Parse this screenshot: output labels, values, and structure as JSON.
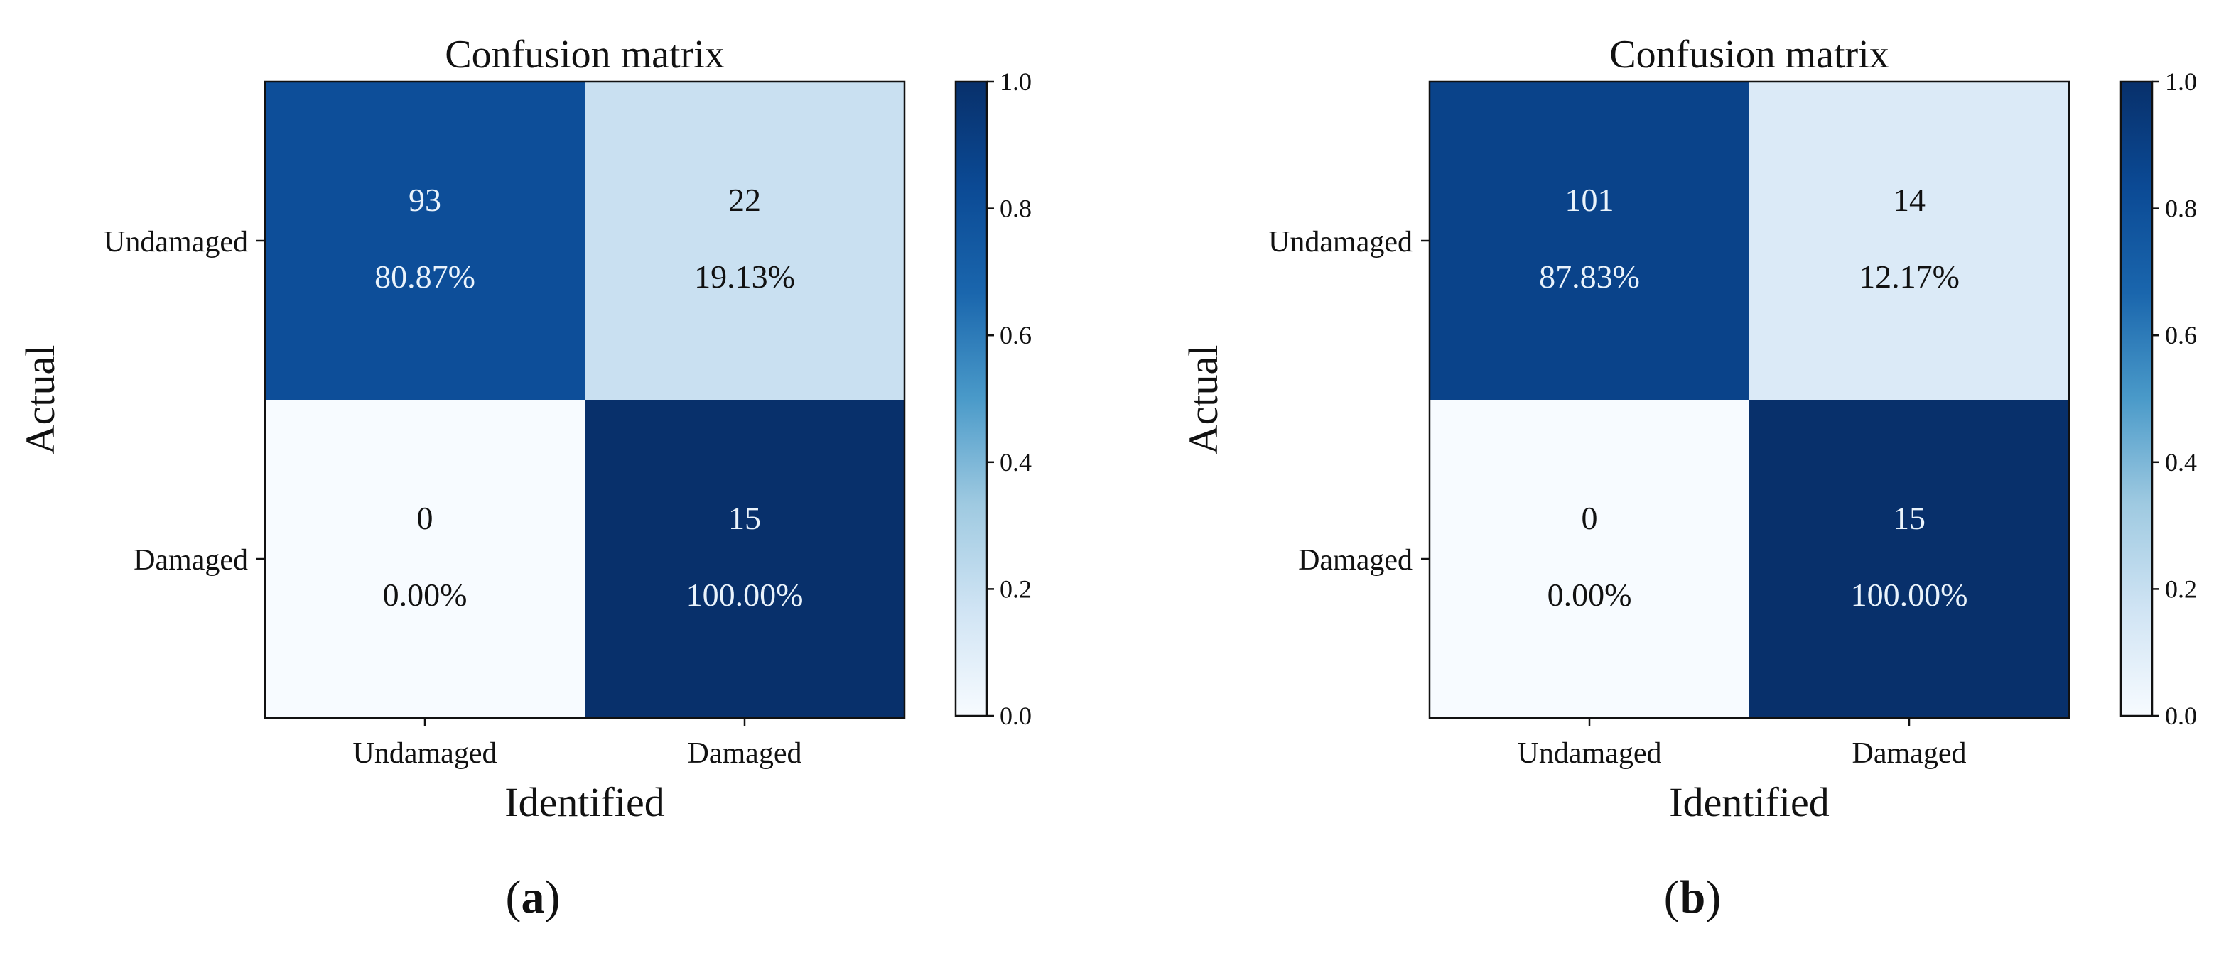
{
  "chart_data": [
    {
      "type": "heatmap",
      "panel": "(a)",
      "panel_letter": "a",
      "title": "Confusion matrix",
      "xlabel": "Identified",
      "ylabel": "Actual",
      "row_labels": [
        "Undamaged",
        "Damaged"
      ],
      "col_labels": [
        "Undamaged",
        "Damaged"
      ],
      "counts": [
        [
          93,
          22
        ],
        [
          0,
          15
        ]
      ],
      "percent_labels": [
        [
          "80.87%",
          "19.13%"
        ],
        [
          "0.00%",
          "100.00%"
        ]
      ],
      "normalized": [
        [
          0.8087,
          0.1913
        ],
        [
          0.0,
          1.0
        ]
      ],
      "colorbar": {
        "range": [
          0.0,
          1.0
        ],
        "ticks": [
          "0.0",
          "0.2",
          "0.4",
          "0.6",
          "0.8",
          "1.0"
        ]
      }
    },
    {
      "type": "heatmap",
      "panel": "(b)",
      "panel_letter": "b",
      "title": "Confusion matrix",
      "xlabel": "Identified",
      "ylabel": "Actual",
      "row_labels": [
        "Undamaged",
        "Damaged"
      ],
      "col_labels": [
        "Undamaged",
        "Damaged"
      ],
      "counts": [
        [
          101,
          14
        ],
        [
          0,
          15
        ]
      ],
      "percent_labels": [
        [
          "87.83%",
          "12.17%"
        ],
        [
          "0.00%",
          "100.00%"
        ]
      ],
      "normalized": [
        [
          0.8783,
          0.1217
        ],
        [
          0.0,
          1.0
        ]
      ],
      "colorbar": {
        "range": [
          0.0,
          1.0
        ],
        "ticks": [
          "0.0",
          "0.2",
          "0.4",
          "0.6",
          "0.8",
          "1.0"
        ]
      }
    }
  ],
  "colors": {
    "scale": [
      "#f7fbff",
      "#d0e4f4",
      "#9fcae1",
      "#4a9ac9",
      "#1a66ad",
      "#0b4a95",
      "#08306b"
    ],
    "light_text": "#eaf3fb",
    "dark_text": "#111111",
    "axis": "#111111"
  }
}
